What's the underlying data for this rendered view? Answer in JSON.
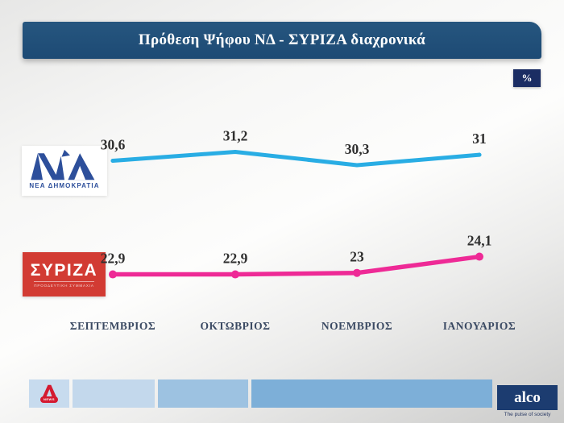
{
  "slide": {
    "title": "Πρόθεση Ψήφου ΝΔ - ΣΥΡΙΖΑ διαχρονικά",
    "unit_badge": "%"
  },
  "chart_data": {
    "type": "line",
    "title": "Πρόθεση Ψήφου ΝΔ - ΣΥΡΙΖΑ διαχρονικά",
    "categories": [
      "ΣΕΠΤΕΜΒΡΙΟΣ",
      "ΟΚΤΩΒΡΙΟΣ",
      "ΝΟΕΜΒΡΙΟΣ",
      "ΙΑΝΟΥΑΡΙΟΣ"
    ],
    "series": [
      {
        "name": "ΝΔ",
        "color": "#29ade4",
        "values": [
          30.6,
          31.2,
          30.3,
          31
        ]
      },
      {
        "name": "ΣΥΡΙΖΑ",
        "color": "#ee2a96",
        "values": [
          22.9,
          22.9,
          23,
          24.1
        ]
      }
    ],
    "unit": "%",
    "value_label_format": "comma-decimal",
    "ylim": [
      19,
      34.5
    ],
    "grid": false,
    "legend_position": "left-logos"
  },
  "legend": {
    "nd": {
      "monogram": "ΝΔ",
      "caption": "ΝΕΑ ΔΗΜΟΚΡΑΤΙΑ"
    },
    "syriza": {
      "wordmark": "ΣΥΡΙΖΑ",
      "caption": "ΠΡΟΟΔΕΥΤΙΚΗ ΣΥΜΜΑΧΙΑ"
    }
  },
  "footer": {
    "ant1_news_badge": "NEWS",
    "alco_wordmark": "alco",
    "alco_tagline": "The pulse of society"
  },
  "colors": {
    "title_bar": "#1e4d78",
    "unit_badge_bg": "#1b2d63",
    "nd_line": "#29ade4",
    "syriza_line": "#ee2a96",
    "nd_logo_blue": "#2d4f9b",
    "syriza_red": "#d23b33",
    "ant1_red": "#d41a30",
    "alco_navy": "#1c3c70",
    "value_label": "#2f2f2f",
    "month_label": "#3b4a63"
  }
}
